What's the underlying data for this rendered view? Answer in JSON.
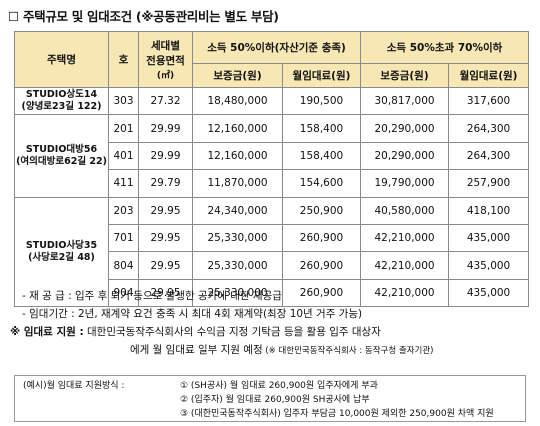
{
  "title": "☐ 주택규모 및 임대조건 (※공동관리비는 별도 부담)",
  "table": {
    "headers": {
      "house": "주택명",
      "unit": "호",
      "area_line1": "세대별",
      "area_line2": "전용면적",
      "area_line3": "(㎡)",
      "group1": "소득 50%이하(자산기준 충족)",
      "group2": "소득 50%초과 70%이하",
      "deposit": "보증금(원)",
      "rent": "월임대료(원)"
    },
    "groups": [
      {
        "name": "STUDIO상도14",
        "addr": "(양녕로23길 122)",
        "rows": [
          {
            "unit": "303",
            "area": "27.32",
            "d1": "18,480,000",
            "r1": "190,500",
            "d2": "30,817,000",
            "r2": "317,600"
          }
        ]
      },
      {
        "name": "STUDIO대방56",
        "addr": "(여의대방로62길 22)",
        "rows": [
          {
            "unit": "201",
            "area": "29.99",
            "d1": "12,160,000",
            "r1": "158,400",
            "d2": "20,290,000",
            "r2": "264,300"
          },
          {
            "unit": "401",
            "area": "29.99",
            "d1": "12,160,000",
            "r1": "158,400",
            "d2": "20,290,000",
            "r2": "264,300"
          },
          {
            "unit": "411",
            "area": "29.79",
            "d1": "11,870,000",
            "r1": "154,600",
            "d2": "19,790,000",
            "r2": "257,900"
          }
        ]
      },
      {
        "name": "STUDIO사당35",
        "addr": "(사당로2길 48)",
        "rows": [
          {
            "unit": "203",
            "area": "29.95",
            "d1": "24,340,000",
            "r1": "250,900",
            "d2": "40,580,000",
            "r2": "418,100"
          },
          {
            "unit": "701",
            "area": "29.95",
            "d1": "25,330,000",
            "r1": "260,900",
            "d2": "42,210,000",
            "r2": "435,000"
          },
          {
            "unit": "804",
            "area": "29.95",
            "d1": "25,330,000",
            "r1": "260,900",
            "d2": "42,210,000",
            "r2": "435,000"
          },
          {
            "unit": "904",
            "area": "29.95",
            "d1": "25,330,000",
            "r1": "260,900",
            "d2": "42,210,000",
            "r2": "435,000"
          }
        ]
      }
    ]
  },
  "notes": {
    "line1": "- 재 공 급 : 입주 후 퇴거 등으로 발생한 공가에 대한 재공급",
    "line2": "- 임대기간 : 2년, 재계약 요건 충족 시 최대 4회 재계약(최장 10년 거주 가능)",
    "line3_bold": "※ 임대료 지원 :",
    "line3_rest": " 대한민국동작주식회사의 수익금 지정 기탁금 등을 활용 입주 대상자",
    "line4_main": "에게 월 임대료 일부 지원 예정",
    "line4_small": " (※ 대한민국동작주식회사 : 동작구청 출자기관)"
  },
  "example": {
    "label": "(예시)월 임대료 지원방식 :",
    "item1": "① (SH공사) 월 임대료 260,900원 입주자에게 부과",
    "item2": "② (입주자) 월 임대료 260,900원 SH공사에 납부",
    "item3": "③ (대한민국동작주식회사) 입주자 부담금 10,000원 제외한 250,900원 차액 지원"
  },
  "colors": {
    "header_bg": "#f7e7b4",
    "border": "#8a8a8a"
  }
}
